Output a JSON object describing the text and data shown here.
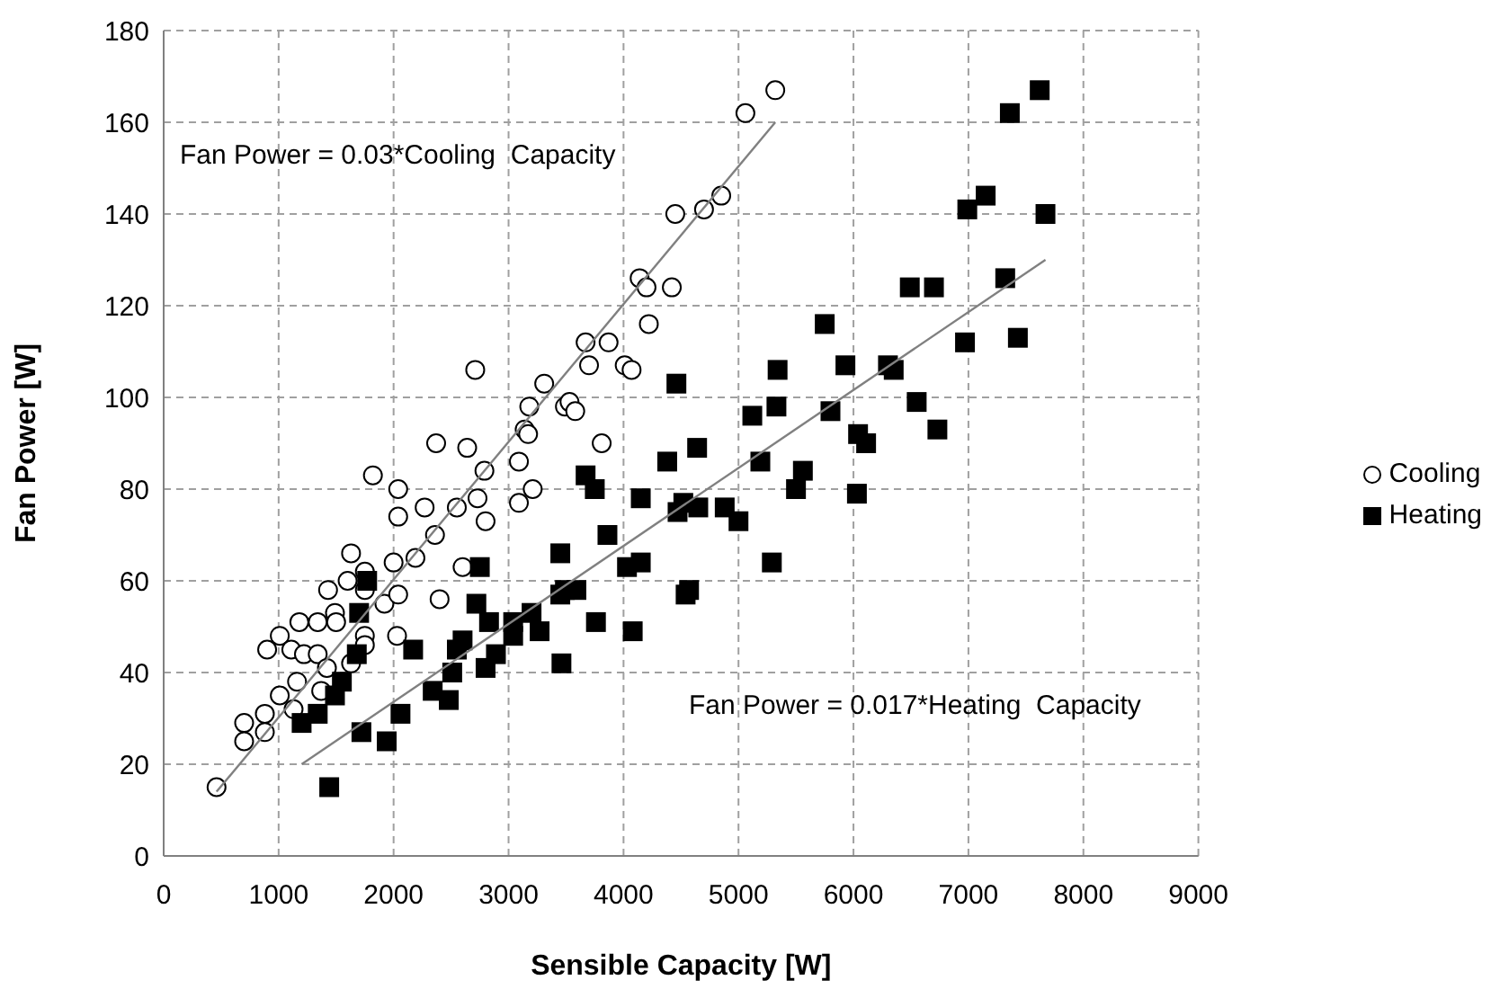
{
  "chart_data": {
    "type": "scatter",
    "xlabel": "Sensible Capacity [W]",
    "ylabel": "Fan Power [W]",
    "xlim": [
      0,
      9000
    ],
    "xticks": [
      0,
      1000,
      2000,
      3000,
      4000,
      5000,
      6000,
      7000,
      8000,
      9000
    ],
    "ylim": [
      0,
      180
    ],
    "yticks": [
      0,
      20,
      40,
      60,
      80,
      100,
      120,
      140,
      160,
      180
    ],
    "grid": true,
    "legend": "right",
    "annotations": [
      "Fan Power = 0.03*Cooling  Capacity",
      "Fan Power = 0.017*Heating  Capacity"
    ],
    "series": [
      {
        "name": "Cooling",
        "color": "#000000",
        "marker": "circle",
        "x": [
          460,
          700,
          700,
          880,
          880,
          900,
          1010,
          1010,
          1110,
          1130,
          1160,
          1180,
          1220,
          1340,
          1340,
          1370,
          1420,
          1430,
          1490,
          1500,
          1600,
          1630,
          1630,
          1750,
          1750,
          1750,
          1750,
          1820,
          1920,
          2000,
          2030,
          2040,
          2040,
          2040,
          2190,
          2270,
          2360,
          2370,
          2400,
          2550,
          2600,
          2640,
          2710,
          2730,
          2790,
          2800,
          3090,
          3090,
          3140,
          3170,
          3180,
          3210,
          3310,
          3490,
          3530,
          3580,
          3670,
          3700,
          3810,
          3870,
          4010,
          4070,
          4140,
          4200,
          4220,
          4420,
          4450,
          4700,
          4850,
          5060,
          5320
        ],
        "values": [
          15,
          29,
          25,
          27,
          31,
          45,
          48,
          35,
          45,
          32,
          38,
          51,
          44,
          51,
          44,
          36,
          41,
          58,
          53,
          51,
          60,
          66,
          42,
          62,
          58,
          48,
          46,
          83,
          55,
          64,
          48,
          57,
          80,
          74,
          65,
          76,
          70,
          90,
          56,
          76,
          63,
          89,
          106,
          78,
          84,
          73,
          86,
          77,
          93,
          92,
          98,
          80,
          103,
          98,
          99,
          97,
          112,
          107,
          90,
          112,
          107,
          106,
          126,
          124,
          116,
          124,
          140,
          141,
          144,
          162,
          167
        ]
      },
      {
        "name": "Heating",
        "color": "#000000",
        "marker": "square",
        "x": [
          1200,
          1340,
          1440,
          1490,
          1550,
          1680,
          1700,
          1720,
          1770,
          1940,
          2060,
          2170,
          2340,
          2480,
          2510,
          2550,
          2600,
          2720,
          2750,
          2800,
          2830,
          2890,
          3040,
          3040,
          3200,
          3270,
          3450,
          3450,
          3460,
          3490,
          3590,
          3670,
          3750,
          3760,
          3860,
          4030,
          4080,
          4150,
          4150,
          4380,
          4460,
          4470,
          4520,
          4540,
          4570,
          4640,
          4650,
          4880,
          5000,
          5120,
          5190,
          5290,
          5330,
          5340,
          5500,
          5560,
          5750,
          5800,
          5930,
          6030,
          6040,
          6110,
          6300,
          6350,
          6490,
          6550,
          6700,
          6730,
          6970,
          6990,
          7150,
          7320,
          7360,
          7430,
          7620,
          7670
        ],
        "values": [
          29,
          31,
          15,
          35,
          38,
          44,
          53,
          27,
          60,
          25,
          31,
          45,
          36,
          34,
          40,
          45,
          47,
          55,
          63,
          41,
          51,
          44,
          51,
          48,
          53,
          49,
          66,
          57,
          42,
          58,
          58,
          83,
          80,
          51,
          70,
          63,
          49,
          64,
          78,
          86,
          103,
          75,
          77,
          57,
          58,
          89,
          76,
          76,
          73,
          96,
          86,
          64,
          98,
          106,
          80,
          84,
          116,
          97,
          107,
          79,
          92,
          90,
          107,
          106,
          124,
          99,
          124,
          93,
          112,
          141,
          144,
          126,
          162,
          113,
          167,
          140
        ]
      },
      {
        "type": "line",
        "color": "#808080",
        "marker": "none",
        "x": [
          460,
          5320
        ],
        "values": [
          14,
          160
        ]
      },
      {
        "type": "line",
        "color": "#808080",
        "marker": "none",
        "x": [
          1200,
          7670
        ],
        "values": [
          20,
          130
        ]
      }
    ]
  }
}
